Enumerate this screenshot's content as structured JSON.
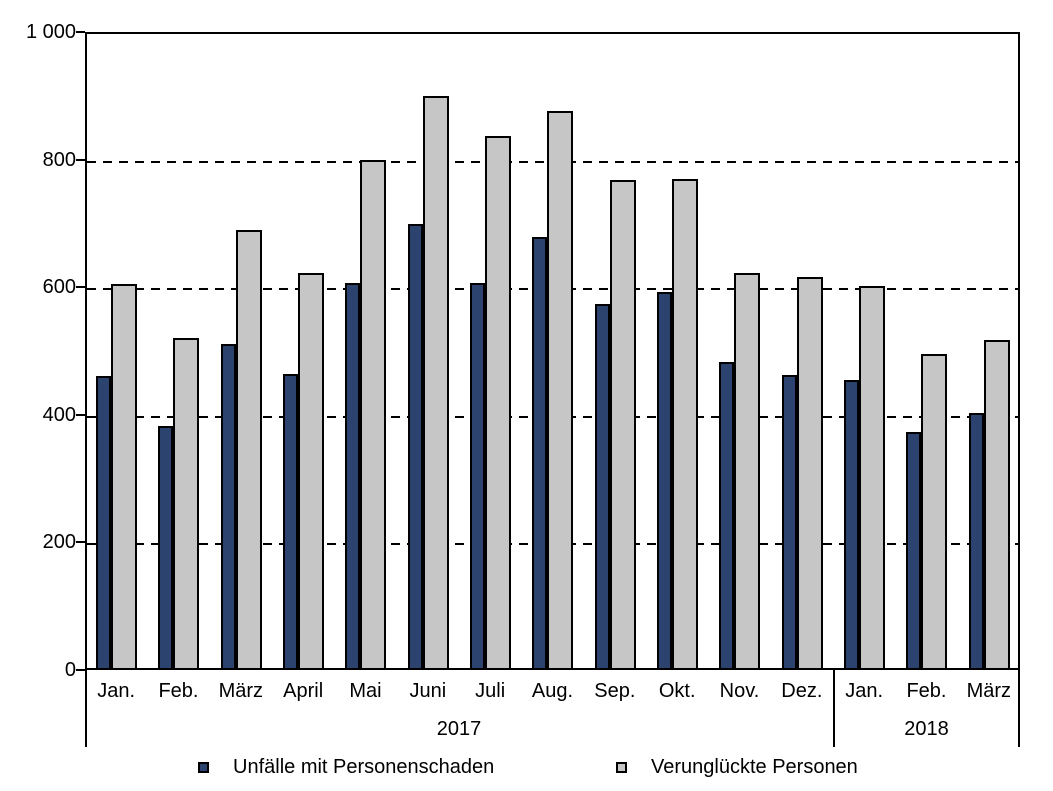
{
  "chart_data": {
    "type": "bar",
    "categories": [
      "Jan.",
      "Feb.",
      "März",
      "April",
      "Mai",
      "Juni",
      "Juli",
      "Aug.",
      "Sep.",
      "Okt.",
      "Nov.",
      "Dez.",
      "Jan.",
      "Feb.",
      "März"
    ],
    "year_groups": [
      {
        "label": "2017",
        "months": 12
      },
      {
        "label": "2018",
        "months": 3
      }
    ],
    "series": [
      {
        "name": "Unfälle mit Personenschaden",
        "color": "#2C436F",
        "values": [
          460,
          382,
          511,
          463,
          608,
          700,
          607,
          680,
          574,
          593,
          483,
          462,
          454,
          372,
          403
        ]
      },
      {
        "name": "Verunglückte Personen",
        "color": "#C6C6C6",
        "values": [
          605,
          520,
          691,
          623,
          802,
          903,
          839,
          878,
          770,
          772,
          623,
          617,
          602,
          495,
          518
        ]
      }
    ],
    "title": "",
    "xlabel": "",
    "ylabel": "",
    "ylim": [
      0,
      1000
    ],
    "ytick_step": 200,
    "ytick_labels": [
      "0",
      "200",
      "400",
      "600",
      "800",
      "1 000"
    ],
    "grid": "horizontal dashed gridlines at 200, 400, 600, 800",
    "legend_position": "bottom",
    "axis_color": "#000000",
    "background_color": "#FFFFFF"
  },
  "legend": {
    "items": [
      {
        "label": "Unfälle mit Personenschaden"
      },
      {
        "label": "Verunglückte Personen"
      }
    ]
  }
}
